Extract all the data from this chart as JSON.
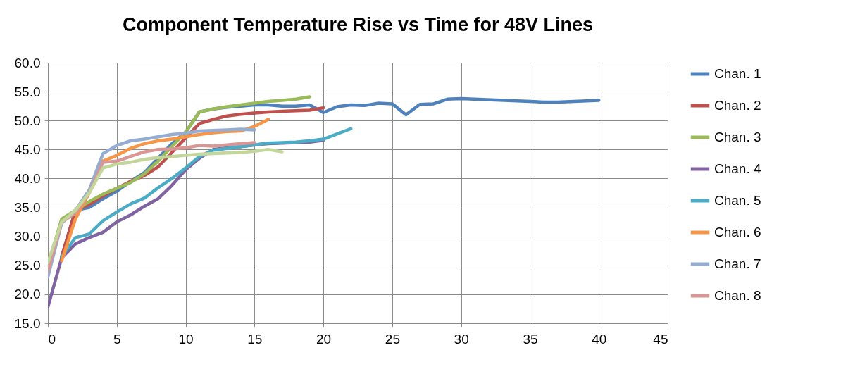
{
  "chart_data": {
    "type": "line",
    "title": "Component Temperature Rise vs Time for 48V Lines",
    "xlim": [
      0,
      45
    ],
    "xticks": [
      0,
      5,
      10,
      15,
      20,
      25,
      30,
      35,
      40,
      45
    ],
    "ylim": [
      15,
      60
    ],
    "yticks": [
      {
        "value": 15,
        "label": "15.0"
      },
      {
        "value": 20,
        "label": "20.0"
      },
      {
        "value": 25,
        "label": "25.0"
      },
      {
        "value": 30,
        "label": "30.0"
      },
      {
        "value": 35,
        "label": "35.0"
      },
      {
        "value": 40,
        "label": "40.0"
      },
      {
        "value": 45,
        "label": "45.0"
      },
      {
        "value": 50,
        "label": "50.0"
      },
      {
        "value": 55,
        "label": "55.0"
      },
      {
        "value": 60,
        "label": "60.0"
      }
    ],
    "grid": true,
    "legend": "right",
    "marker": "none",
    "line_style": "solid",
    "series": [
      {
        "name": "Chan. 1",
        "color": "#4f81bd",
        "x": [
          1,
          2,
          3,
          4,
          5,
          6,
          7,
          8,
          9,
          10,
          11,
          12,
          13,
          14,
          15,
          16,
          17,
          18,
          19,
          20,
          21,
          22,
          23,
          24,
          25,
          26,
          27,
          28,
          29,
          30,
          35,
          36,
          37,
          40
        ],
        "values": [
          26.5,
          34.5,
          35,
          36.5,
          37.8,
          39.5,
          41,
          43.5,
          46,
          48,
          51.5,
          52,
          52.3,
          52.5,
          52.7,
          52.7,
          52.5,
          52.5,
          52.7,
          51.4,
          52.4,
          52.7,
          52.6,
          53.0,
          52.9,
          51.0,
          52.8,
          52.9,
          53.7,
          53.8,
          53.3,
          53.2,
          53.2,
          53.5
        ]
      },
      {
        "name": "Chan. 2",
        "color": "#c0504d",
        "x": [
          1,
          2,
          3,
          4,
          5,
          6,
          7,
          8,
          9,
          10,
          11,
          12,
          13,
          14,
          15,
          16,
          17,
          18,
          19,
          20
        ],
        "values": [
          26.5,
          34.5,
          35.5,
          37,
          38.3,
          39.5,
          40.5,
          42,
          44.5,
          47,
          49.5,
          50.2,
          50.8,
          51.1,
          51.3,
          51.5,
          51.6,
          51.7,
          51.8,
          52.2
        ]
      },
      {
        "name": "Chan. 3",
        "color": "#9bbb59",
        "x": [
          0,
          1,
          2,
          3,
          4,
          5,
          6,
          7,
          8,
          9,
          10,
          11,
          12,
          13,
          14,
          15,
          16,
          17,
          18,
          19
        ],
        "values": [
          25,
          33,
          34.5,
          36,
          37.3,
          38.3,
          39.3,
          40.8,
          43,
          45.5,
          48,
          51.5,
          52,
          52.4,
          52.7,
          53,
          53.3,
          53.5,
          53.7,
          54.1
        ]
      },
      {
        "name": "Chan. 4",
        "color": "#8064a2",
        "x": [
          0,
          1,
          2,
          3,
          4,
          5,
          6,
          7,
          8,
          9,
          10,
          11,
          12,
          13,
          14,
          15,
          16,
          17,
          18,
          19,
          20
        ],
        "values": [
          17.8,
          26.3,
          28.7,
          29.8,
          30.7,
          32.5,
          33.7,
          35.2,
          36.5,
          38.8,
          41.5,
          43.5,
          45,
          45.3,
          45.5,
          45.8,
          46,
          46.1,
          46.2,
          46.3,
          46.6
        ]
      },
      {
        "name": "Chan. 5",
        "color": "#4bacc6",
        "x": [
          1,
          2,
          3,
          4,
          5,
          6,
          7,
          8,
          9,
          10,
          11,
          12,
          13,
          14,
          15,
          16,
          17,
          18,
          19,
          20,
          21,
          22
        ],
        "values": [
          26.5,
          29.8,
          30.4,
          32.7,
          34.2,
          35.6,
          36.6,
          38.4,
          40,
          41.8,
          43.8,
          44.9,
          45.2,
          45.5,
          45.8,
          46.1,
          46.2,
          46.3,
          46.5,
          46.8,
          47.7,
          48.6
        ]
      },
      {
        "name": "Chan. 6",
        "color": "#f79646",
        "x": [
          1,
          2,
          3,
          4,
          5,
          6,
          7,
          8,
          9,
          10,
          11,
          12,
          13,
          14,
          15,
          16
        ],
        "values": [
          25.8,
          33,
          37.5,
          43,
          44,
          45.2,
          46,
          46.5,
          46.8,
          47.2,
          47.6,
          47.9,
          48.1,
          48.2,
          49,
          50.2
        ]
      },
      {
        "name": "Chan. 7",
        "color": "#95acd3",
        "x": [
          0,
          1,
          2,
          3,
          4,
          5,
          6,
          7,
          8,
          9,
          10,
          11,
          12,
          13,
          14,
          15
        ],
        "values": [
          23,
          32.3,
          34.5,
          38,
          44.3,
          45.7,
          46.5,
          46.8,
          47.2,
          47.6,
          47.8,
          48.2,
          48.3,
          48.4,
          48.5,
          48.4
        ]
      },
      {
        "name": "Chan. 8",
        "color": "#d99694",
        "x": [
          0,
          1,
          2,
          3,
          4,
          5,
          6,
          7,
          8,
          9,
          10,
          11,
          12,
          13,
          14,
          15
        ],
        "values": [
          24,
          32.5,
          34,
          37.5,
          42.8,
          43,
          43.8,
          44.6,
          45,
          45.1,
          45.3,
          45.7,
          45.6,
          45.8,
          46,
          46.2
        ]
      },
      {
        "color": "#c3d69b",
        "x": [
          0,
          1,
          2,
          3,
          4,
          5,
          6,
          7,
          8,
          9,
          10,
          11,
          12,
          13,
          14,
          15,
          16,
          17
        ],
        "values": [
          25.5,
          32.5,
          34.5,
          37.5,
          41.8,
          42.5,
          42.8,
          43.3,
          43.6,
          43.8,
          44,
          44.2,
          44.3,
          44.4,
          44.5,
          44.7,
          45,
          44.6
        ]
      }
    ]
  }
}
